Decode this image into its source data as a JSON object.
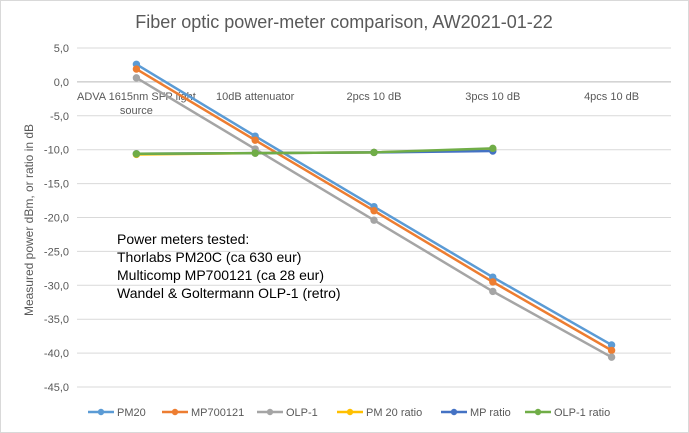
{
  "chart_data": {
    "type": "line",
    "title": "Fiber optic power-meter comparison, AW2021-01-22",
    "ylabel": "Measured power dBm, or ratio in dB",
    "xlabel": "",
    "ylim": [
      -45,
      5
    ],
    "yticks": [
      "5,0",
      "0,0",
      "-5,0",
      "-10,0",
      "-15,0",
      "-20,0",
      "-25,0",
      "-30,0",
      "-35,0",
      "-40,0",
      "-45,0"
    ],
    "ytick_values": [
      5,
      0,
      -5,
      -10,
      -15,
      -20,
      -25,
      -30,
      -35,
      -40,
      -45
    ],
    "categories": [
      "ADVA 1615nm SFP light source",
      "10dB attenuator",
      "2pcs 10 dB",
      "3pcs 10 dB",
      "4pcs 10 dB"
    ],
    "grid": "horizontal",
    "legend_position": "bottom",
    "series": [
      {
        "name": "PM20",
        "color": "#5B9BD5",
        "values": [
          2.6,
          -8.0,
          -18.4,
          -28.8,
          -38.8
        ]
      },
      {
        "name": "MP700121",
        "color": "#ED7D31",
        "values": [
          1.9,
          -8.6,
          -19.0,
          -29.5,
          -39.6
        ]
      },
      {
        "name": "OLP-1",
        "color": "#A5A5A5",
        "values": [
          0.6,
          -9.9,
          -20.4,
          -30.9,
          -40.6
        ]
      },
      {
        "name": "PM 20 ratio",
        "color": "#FFC000",
        "values": [
          -10.7,
          -10.5,
          -10.4,
          -10.0,
          null
        ]
      },
      {
        "name": "MP ratio",
        "color": "#4472C4",
        "values": [
          -10.6,
          -10.5,
          -10.4,
          -10.2,
          null
        ]
      },
      {
        "name": "OLP-1 ratio",
        "color": "#70AD47",
        "values": [
          -10.6,
          -10.5,
          -10.4,
          -9.8,
          null
        ]
      }
    ],
    "annotation": [
      "Power meters tested:",
      "Thorlabs PM20C (ca 630 eur)",
      "Multicomp MP700121  (ca 28 eur)",
      "Wandel & Goltermann OLP-1 (retro)"
    ]
  }
}
